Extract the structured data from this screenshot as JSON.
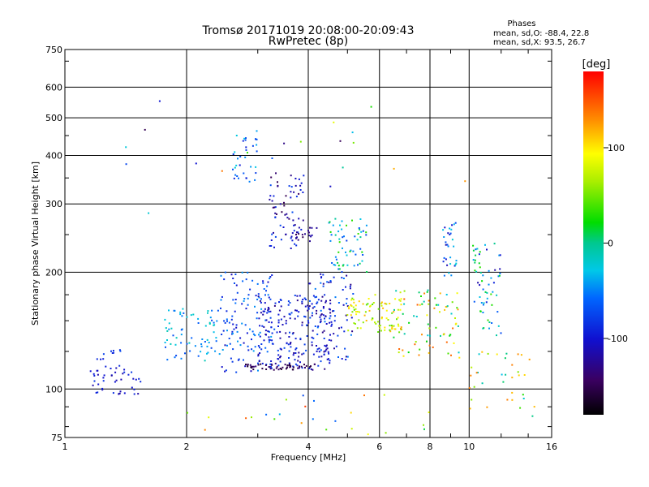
{
  "chart_data": {
    "type": "scatter",
    "title": "Tromsø 20171019 20:08:00-20:09:43",
    "subtitle": "RwPretec (8p)",
    "xlabel": "Frequency [MHz]",
    "ylabel": "Stationary phase Virtual Height [km]",
    "x_scale": "log",
    "y_scale": "log",
    "xlim": [
      1,
      16
    ],
    "ylim": [
      75,
      750
    ],
    "x_ticks": [
      1,
      2,
      4,
      6,
      8,
      10,
      16
    ],
    "y_ticks": [
      75,
      100,
      200,
      300,
      400,
      500,
      600,
      750
    ],
    "grid": true,
    "stats": {
      "heading": "Phases",
      "o_line": "mean, sd,O: -88.4, 22.8",
      "x_line": "mean, sd,X:  93.5, 26.7"
    },
    "colorbar": {
      "label": "[deg]",
      "range": [
        -180,
        180
      ],
      "ticks": [
        100,
        0,
        -100
      ],
      "placement": "right"
    },
    "clusters": [
      {
        "f": [
          1.15,
          1.55
        ],
        "h": [
          97,
          115
        ],
        "phase": -100,
        "spread": 20,
        "n": 45
      },
      {
        "f": [
          1.2,
          1.4
        ],
        "h": [
          118,
          128
        ],
        "phase": -85,
        "spread": 15,
        "n": 10
      },
      {
        "f": [
          1.75,
          2.4
        ],
        "h": [
          118,
          162
        ],
        "phase": -45,
        "spread": 35,
        "n": 70
      },
      {
        "f": [
          2.4,
          3.3
        ],
        "h": [
          110,
          200
        ],
        "phase": -75,
        "spread": 35,
        "n": 130
      },
      {
        "f": [
          3.0,
          4.6
        ],
        "h": [
          112,
          175
        ],
        "phase": -100,
        "spread": 30,
        "n": 200
      },
      {
        "f": [
          2.8,
          4.2
        ],
        "h": [
          112,
          116
        ],
        "phase": -150,
        "spread": 15,
        "n": 50
      },
      {
        "f": [
          2.6,
          3.0
        ],
        "h": [
          340,
          470
        ],
        "phase": -60,
        "spread": 40,
        "n": 35
      },
      {
        "f": [
          3.2,
          3.9
        ],
        "h": [
          230,
          360
        ],
        "phase": -110,
        "spread": 40,
        "n": 70
      },
      {
        "f": [
          3.6,
          4.2
        ],
        "h": [
          240,
          265
        ],
        "phase": -130,
        "spread": 20,
        "n": 20
      },
      {
        "f": [
          4.5,
          5.6
        ],
        "h": [
          200,
          275
        ],
        "phase": -20,
        "spread": 60,
        "n": 60
      },
      {
        "f": [
          4.0,
          5.2
        ],
        "h": [
          118,
          200
        ],
        "phase": -90,
        "spread": 40,
        "n": 90
      },
      {
        "f": [
          5.0,
          6.8
        ],
        "h": [
          140,
          175
        ],
        "phase": 80,
        "spread": 40,
        "n": 90
      },
      {
        "f": [
          6.5,
          9.5
        ],
        "h": [
          120,
          180
        ],
        "phase": 60,
        "spread": 90,
        "n": 80
      },
      {
        "f": [
          8.6,
          9.3
        ],
        "h": [
          190,
          270
        ],
        "phase": -70,
        "spread": 50,
        "n": 30
      },
      {
        "f": [
          10.2,
          12.0
        ],
        "h": [
          135,
          240
        ],
        "phase": -40,
        "spread": 80,
        "n": 60
      },
      {
        "f": [
          10.0,
          14.5
        ],
        "h": [
          85,
          125
        ],
        "phase": 50,
        "spread": 90,
        "n": 35
      },
      {
        "f": [
          1.4,
          11.0
        ],
        "h": [
          280,
          560
        ],
        "phase": 0,
        "spread": 150,
        "n": 20
      },
      {
        "f": [
          2.0,
          8.0
        ],
        "h": [
          75,
          100
        ],
        "phase": 40,
        "spread": 120,
        "n": 25
      }
    ]
  }
}
